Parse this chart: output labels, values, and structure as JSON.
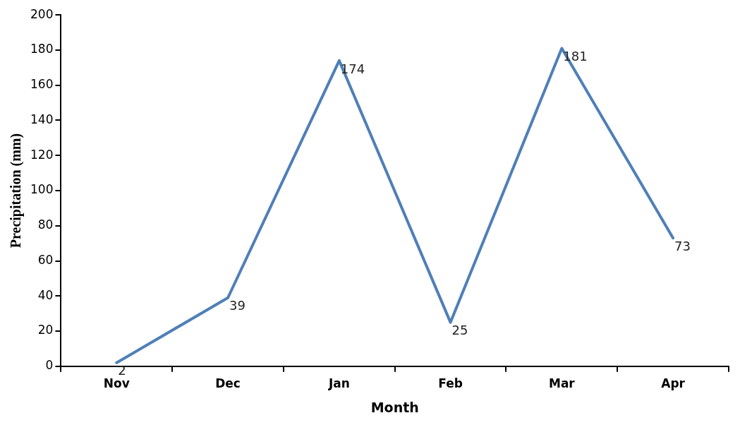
{
  "chart_data": {
    "type": "line",
    "xlabel": "Month",
    "ylabel": "Precipitation (mm)",
    "categories": [
      "Nov",
      "Dec",
      "Jan",
      "Feb",
      "Mar",
      "Apr"
    ],
    "series": [
      {
        "color": "#4f7fb8",
        "values": [
          2,
          39,
          174,
          25,
          181,
          73
        ]
      }
    ],
    "ylim": [
      0,
      200
    ],
    "yticks": [
      0,
      20,
      40,
      60,
      80,
      100,
      120,
      140,
      160,
      180,
      200
    ],
    "grid": false,
    "legend": false,
    "data_labels": true,
    "marker": "none",
    "line_style": "solid"
  }
}
